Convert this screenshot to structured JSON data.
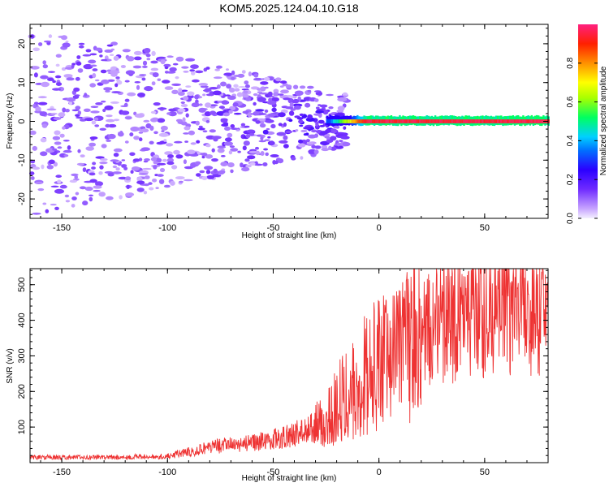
{
  "title": "KOM5.2025.124.04.10.G18",
  "chart_data": [
    {
      "type": "heatmap",
      "xlabel": "Height of straight line (km)",
      "ylabel": "Frequency (Hz)",
      "xlim": [
        -165,
        80
      ],
      "ylim": [
        -25,
        25
      ],
      "xticks": [
        -150,
        -100,
        -50,
        0,
        50
      ],
      "yticks": [
        -20,
        -10,
        0,
        10,
        20
      ],
      "colorbar": {
        "label": "Normalized spectral amplitude",
        "range": [
          0.0,
          1.0
        ],
        "ticks": [
          0.0,
          0.2,
          0.4,
          0.6,
          0.8
        ],
        "tick_labels": [
          "0.0",
          "0.2",
          "0.4",
          "0.6",
          "0.8"
        ],
        "colormap": "rainbow"
      },
      "features": {
        "noise_region_x": [
          -165,
          -25
        ],
        "signal_start_x": -25,
        "signal_frequency_hz": 0,
        "signal_amplitude_after_start": 0.95
      }
    },
    {
      "type": "line",
      "xlabel": "Height of straight line (km)",
      "ylabel": "SNR (v/v)",
      "xlim": [
        -165,
        80
      ],
      "ylim": [
        0,
        545
      ],
      "xticks": [
        -150,
        -100,
        -50,
        0,
        50
      ],
      "yticks": [
        100,
        200,
        300,
        400,
        500
      ],
      "color": "#ee3333",
      "series": [
        {
          "x": [
            -165,
            -140,
            -120,
            -100,
            -90,
            -80,
            -70,
            -60,
            -50,
            -40,
            -30,
            -25,
            -20,
            -15,
            -10,
            -5,
            0,
            10,
            20,
            30,
            40,
            50,
            60,
            70,
            80
          ],
          "values": [
            15,
            15,
            16,
            18,
            30,
            45,
            50,
            55,
            65,
            80,
            100,
            120,
            160,
            200,
            230,
            260,
            270,
            310,
            360,
            395,
            410,
            420,
            430,
            440,
            440
          ]
        }
      ]
    }
  ]
}
